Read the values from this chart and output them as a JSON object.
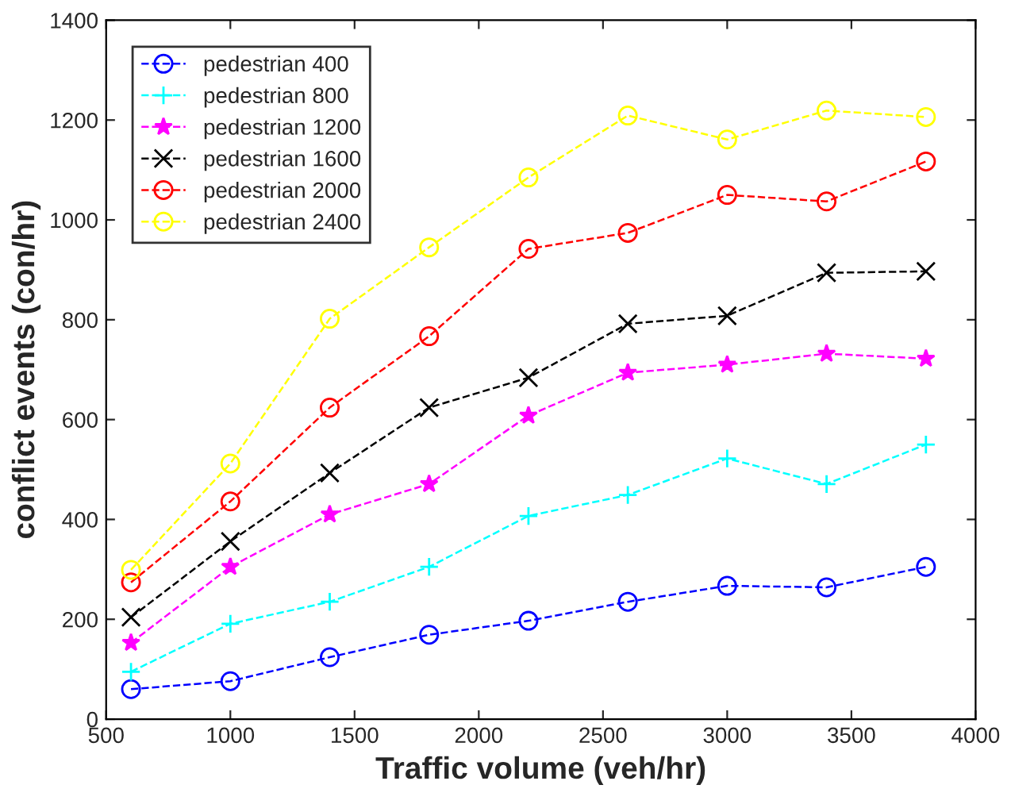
{
  "chart_data": {
    "type": "line",
    "xlabel": "Traffic volume (veh/hr)",
    "ylabel": "conflict events (con/hr)",
    "x": [
      600,
      1000,
      1400,
      1800,
      2200,
      2600,
      3000,
      3400,
      3800
    ],
    "xlim": [
      500,
      4000
    ],
    "xticks": [
      500,
      1000,
      1500,
      2000,
      2500,
      3000,
      3500,
      4000
    ],
    "ylim": [
      0,
      1400
    ],
    "yticks": [
      0,
      200,
      400,
      600,
      800,
      1000,
      1200,
      1400
    ],
    "grid": false,
    "legend": "top left",
    "line_style": "dashed",
    "series": [
      {
        "name": "pedestrian 400",
        "color": "#0000ff",
        "marker": "circle",
        "values": [
          60,
          76,
          124,
          169,
          197,
          235,
          267,
          264,
          305
        ]
      },
      {
        "name": "pedestrian 800",
        "color": "#00ffff",
        "marker": "plus",
        "values": [
          95,
          191,
          235,
          305,
          407,
          449,
          522,
          471,
          550
        ]
      },
      {
        "name": "pedestrian 1200",
        "color": "#ff00ff",
        "marker": "star",
        "values": [
          153,
          305,
          410,
          471,
          608,
          694,
          710,
          732,
          722
        ]
      },
      {
        "name": "pedestrian 1600",
        "color": "#000000",
        "marker": "cross",
        "values": [
          204,
          356,
          493,
          624,
          684,
          792,
          808,
          894,
          897
        ]
      },
      {
        "name": "pedestrian 2000",
        "color": "#ff0000",
        "marker": "circle",
        "values": [
          274,
          436,
          624,
          767,
          942,
          974,
          1050,
          1037,
          1117
        ]
      },
      {
        "name": "pedestrian 2400",
        "color": "#ffff00",
        "marker": "circle",
        "values": [
          299,
          512,
          802,
          945,
          1085,
          1209,
          1161,
          1219,
          1206
        ]
      }
    ]
  }
}
